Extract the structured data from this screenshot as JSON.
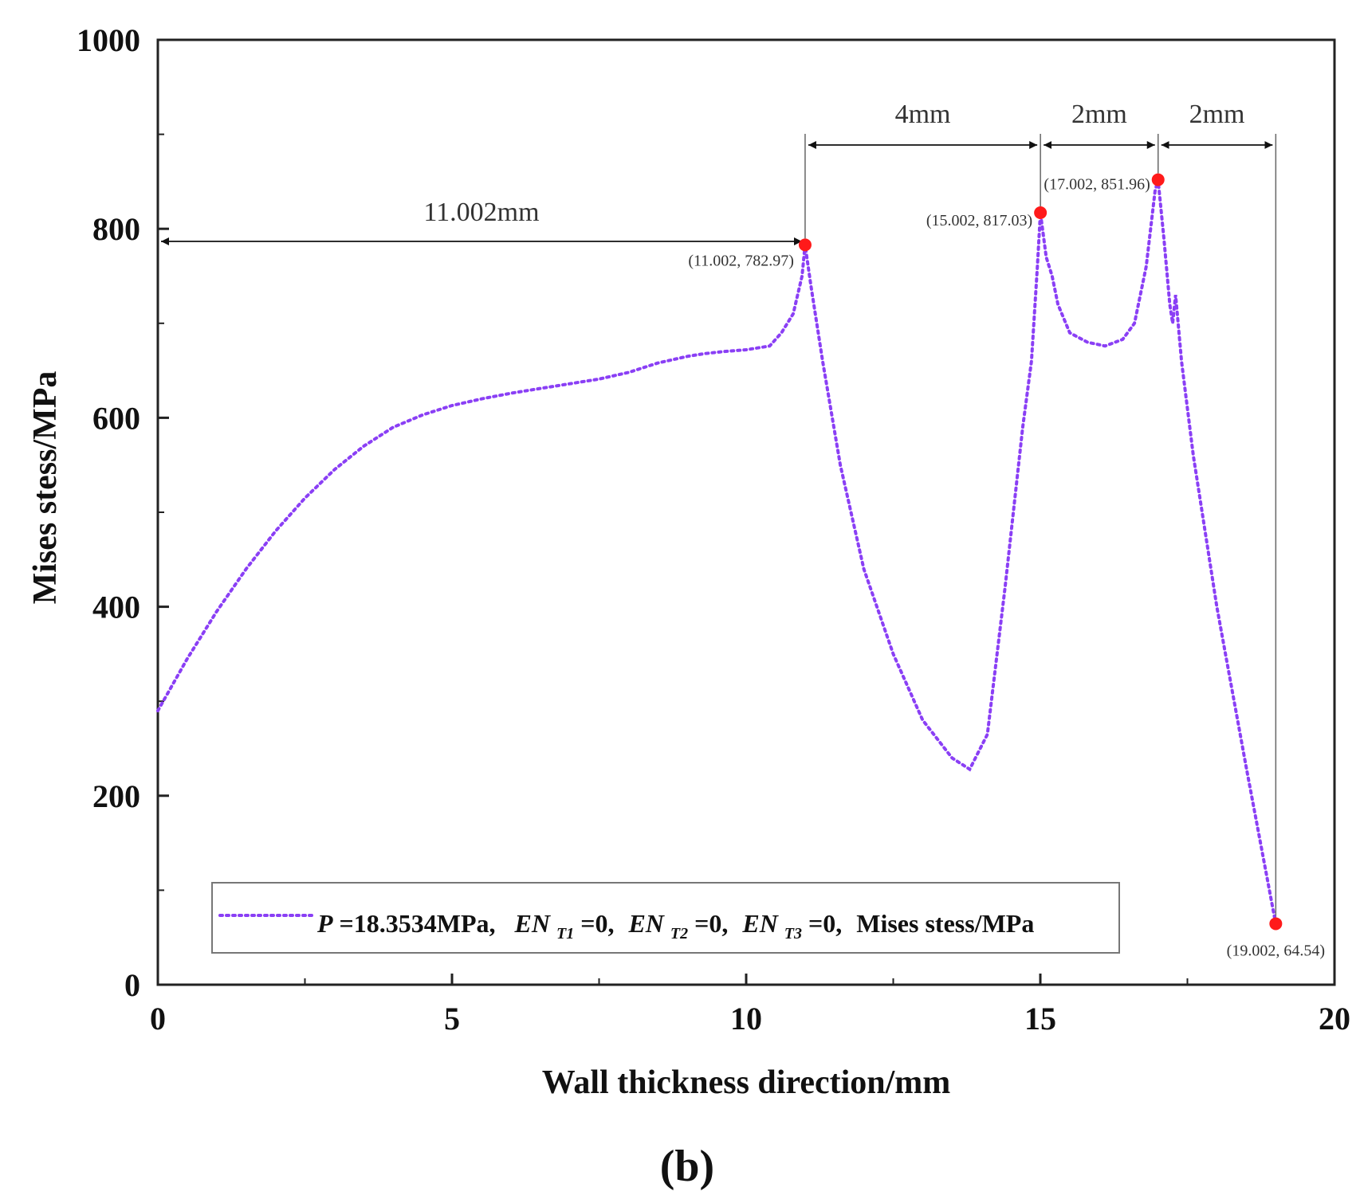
{
  "chart_data": {
    "type": "line",
    "xlabel": "Wall thickness direction/mm",
    "ylabel": "Mises stess/MPa",
    "xlim": [
      0,
      20
    ],
    "ylim": [
      0,
      1000
    ],
    "xticks": [
      0,
      5,
      10,
      15,
      20
    ],
    "yticks": [
      0,
      200,
      400,
      600,
      800,
      1000
    ],
    "grid": false,
    "line_color": "#8a3ff5",
    "marker_color": "#ff1a1a",
    "series": [
      {
        "name": "P=18.3534MPa, EN_T1=0, EN_T2=0, EN_T3=0, Mises stess/MPa",
        "style": "dotted",
        "x": [
          0,
          0.5,
          1,
          1.5,
          2,
          2.5,
          3,
          3.5,
          4,
          4.5,
          5,
          5.5,
          6,
          6.5,
          7,
          7.5,
          8,
          8.5,
          9,
          9.3,
          9.6,
          10,
          10.4,
          10.6,
          10.8,
          10.95,
          11.002,
          11.1,
          11.3,
          11.6,
          12,
          12.5,
          13,
          13.5,
          13.8,
          14.1,
          14.4,
          14.7,
          14.85,
          14.95,
          15.002,
          15.1,
          15.2,
          15.3,
          15.5,
          15.8,
          16.1,
          16.4,
          16.6,
          16.8,
          16.95,
          17.002,
          17.1,
          17.2,
          17.25,
          17.3,
          17.4,
          17.6,
          18,
          18.5,
          19.002
        ],
        "y": [
          290,
          345,
          395,
          440,
          480,
          515,
          545,
          570,
          590,
          603,
          613,
          620,
          626,
          631,
          636,
          641,
          648,
          658,
          665,
          668,
          670,
          672,
          676,
          690,
          710,
          750,
          782.97,
          740,
          660,
          550,
          440,
          350,
          280,
          240,
          228,
          265,
          420,
          590,
          660,
          760,
          817.03,
          770,
          750,
          720,
          690,
          680,
          676,
          683,
          700,
          760,
          840,
          851.96,
          790,
          720,
          700,
          730,
          660,
          560,
          400,
          230,
          64.54
        ]
      }
    ],
    "highlight_points": [
      {
        "x": 11.002,
        "y": 782.97,
        "label": "(11.002, 782.97)"
      },
      {
        "x": 15.002,
        "y": 817.03,
        "label": "(15.002, 817.03)"
      },
      {
        "x": 17.002,
        "y": 851.96,
        "label": "(17.002, 851.96)"
      },
      {
        "x": 19.002,
        "y": 64.54,
        "label": "(19.002, 64.54)"
      }
    ],
    "dimensions": [
      {
        "from": 0,
        "to": 11.002,
        "label": "11.002mm"
      },
      {
        "from": 11.002,
        "to": 15.002,
        "label": "4mm"
      },
      {
        "from": 15.002,
        "to": 17.002,
        "label": "2mm"
      },
      {
        "from": 17.002,
        "to": 19.002,
        "label": "2mm"
      }
    ],
    "legend": {
      "position": "bottom-left",
      "parts": {
        "p": "P",
        "p_value": "=18.3534MPa,",
        "en": "EN",
        "t1": "T1",
        "t2": "T2",
        "t3": "T3",
        "zero": "=0,",
        "metric": "Mises stess/MPa"
      }
    },
    "caption": "(b)"
  }
}
